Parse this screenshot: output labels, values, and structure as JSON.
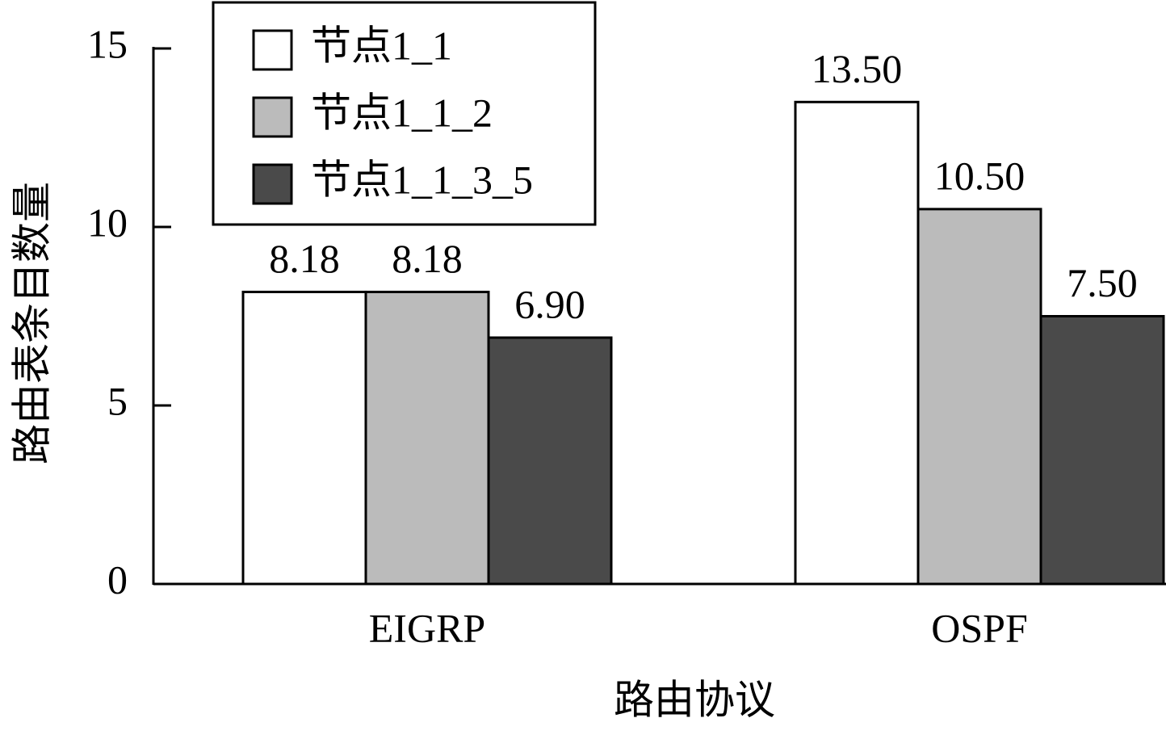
{
  "chart_data": {
    "type": "bar",
    "x_label": "路由协议",
    "y_label": "路由表条目数量",
    "categories": [
      "EIGRP",
      "OSPF"
    ],
    "series": [
      {
        "name": "节点1_1",
        "color": "#ffffff",
        "values": [
          8.18,
          13.5
        ],
        "value_labels": [
          "8.18",
          "13.50"
        ]
      },
      {
        "name": "节点1_1_2",
        "color": "#bbbbbb",
        "values": [
          8.18,
          10.5
        ],
        "value_labels": [
          "8.18",
          "10.50"
        ]
      },
      {
        "name": "节点1_1_3_5",
        "color": "#4a4a4a",
        "values": [
          6.9,
          7.5
        ],
        "value_labels": [
          "6.90",
          "7.50"
        ]
      }
    ],
    "ylim": [
      0,
      15
    ],
    "yticks": [
      0,
      5,
      10,
      15
    ],
    "legend": "upper left"
  }
}
